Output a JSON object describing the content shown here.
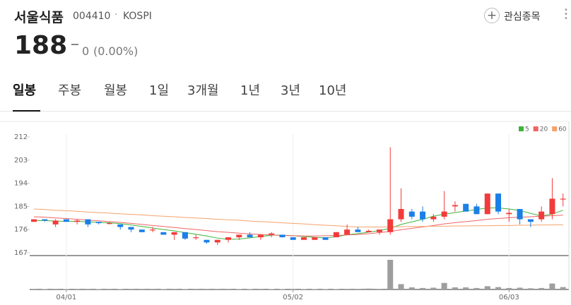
{
  "header": {
    "name": "서울식품",
    "code": "004410",
    "market": "KOSPI",
    "price": "188",
    "change": "0",
    "change_rate": "(0.00%)",
    "watch_button": "관심종목"
  },
  "tabs": [
    "일봉",
    "주봉",
    "월봉",
    "1일",
    "3개월",
    "1년",
    "3년",
    "10년"
  ],
  "chart_data": {
    "type": "candlestick",
    "categories": [
      null,
      null,
      null,
      "04/01",
      null,
      null,
      null,
      null,
      null,
      null,
      null,
      null,
      null,
      null,
      null,
      null,
      null,
      null,
      null,
      null,
      null,
      null,
      null,
      null,
      "05/02",
      null,
      null,
      null,
      null,
      null,
      null,
      null,
      null,
      null,
      null,
      null,
      null,
      null,
      null,
      null,
      null,
      null,
      null,
      null,
      "06/03",
      null,
      null,
      null,
      null,
      null
    ],
    "open": [
      179,
      180,
      178,
      180,
      179,
      180,
      179,
      178.5,
      178,
      177,
      176,
      176,
      175,
      174,
      175,
      173,
      172,
      171,
      172,
      173,
      174,
      173,
      174,
      174,
      173,
      172,
      172,
      173,
      173,
      174,
      176,
      175,
      175,
      175,
      180,
      183,
      183,
      180,
      181,
      185,
      186,
      185,
      182,
      190,
      182,
      184,
      180,
      180,
      182,
      188
    ],
    "high": [
      180,
      180,
      180,
      180,
      180,
      180,
      179,
      179,
      178,
      177,
      176,
      177,
      175,
      175,
      175,
      174,
      172,
      172,
      173,
      174,
      175,
      174,
      175,
      174,
      173,
      173,
      173,
      173,
      175,
      178,
      177,
      176,
      176,
      208,
      192,
      184,
      185,
      182,
      191,
      187,
      186,
      186,
      190,
      190,
      184,
      184,
      180,
      185,
      196,
      190
    ],
    "low": [
      179,
      179,
      177,
      179,
      178,
      177,
      178,
      178,
      176,
      175,
      175,
      175,
      174,
      172,
      172,
      172,
      170.5,
      170,
      171,
      172,
      173,
      172,
      173,
      173,
      172,
      172,
      172,
      172,
      173,
      174,
      175,
      175,
      174,
      174,
      179,
      180,
      179,
      179,
      180,
      183,
      183,
      182,
      182,
      182,
      179,
      178,
      177,
      179,
      180,
      185
    ],
    "close": [
      180,
      179.5,
      179.5,
      179,
      179.5,
      178,
      178.5,
      178.5,
      177,
      176,
      175,
      176,
      174,
      175,
      172.5,
      173,
      171,
      172,
      173,
      174,
      173,
      174,
      174.5,
      173,
      172,
      173,
      173,
      172,
      175,
      176,
      175,
      175.5,
      176,
      180,
      184,
      181,
      180,
      181,
      183,
      185.5,
      183,
      182,
      190,
      183,
      182.5,
      180,
      179,
      183,
      188,
      188
    ],
    "up_color": "#f23b3b",
    "down_color": "#1b7fe8",
    "volume": {
      "color": "#9e9e9e",
      "vlim": [
        0,
        100
      ],
      "values": [
        2,
        1,
        2,
        1,
        2,
        2,
        1,
        2,
        1,
        2,
        2,
        2,
        1,
        2,
        1,
        2,
        2,
        2,
        2,
        1,
        1,
        2,
        1,
        1,
        2,
        1,
        1,
        1,
        1,
        2,
        2,
        3,
        2,
        100,
        18,
        7,
        5,
        6,
        22,
        7,
        7,
        5,
        11,
        8,
        5,
        6,
        4,
        5,
        20,
        8
      ]
    },
    "series": [
      {
        "name": "5",
        "color": "#3cb43c",
        "values": [
          179.5,
          179.5,
          179.3,
          179.2,
          179.2,
          179,
          178.8,
          178.6,
          178.3,
          177.8,
          177.2,
          176.6,
          176,
          175.5,
          174.8,
          174.2,
          173.5,
          172.7,
          172.2,
          172.3,
          172.8,
          173.3,
          173.8,
          173.8,
          173.6,
          173.3,
          173,
          172.8,
          173.2,
          174,
          174.4,
          175,
          175.6,
          176.5,
          178,
          179,
          180,
          181.2,
          182,
          182.6,
          183.2,
          183.8,
          184.4,
          184.4,
          184,
          183.4,
          182.3,
          181.3,
          182,
          183.5
        ]
      },
      {
        "name": "20",
        "color": "#f06464",
        "values": [
          181,
          180.8,
          180.5,
          180.3,
          180,
          179.7,
          179.4,
          179.1,
          178.8,
          178.4,
          178,
          177.6,
          177.2,
          176.8,
          176.4,
          176,
          175.6,
          175.2,
          174.9,
          174.6,
          174.3,
          174.1,
          173.9,
          173.7,
          173.6,
          173.5,
          173.5,
          173.6,
          173.7,
          173.9,
          174.1,
          174.4,
          174.8,
          175.3,
          175.9,
          176.5,
          177,
          177.6,
          178.2,
          178.7,
          179.1,
          179.5,
          180,
          180.3,
          180.6,
          180.8,
          181,
          181.2,
          181.4,
          181.6
        ]
      },
      {
        "name": "60",
        "color": "#f4a36b",
        "values": [
          184,
          183.8,
          183.5,
          183.3,
          183.1,
          182.8,
          182.6,
          182.4,
          182.1,
          181.9,
          181.7,
          181.4,
          181.2,
          181,
          180.7,
          180.5,
          180.3,
          180,
          179.8,
          179.6,
          179.3,
          179.1,
          178.9,
          178.6,
          178.4,
          178.2,
          177.9,
          177.7,
          177.5,
          177.2,
          177,
          177,
          177,
          177.1,
          177.1,
          177.2,
          177.2,
          177.3,
          177.3,
          177.4,
          177.4,
          177.5,
          177.5,
          177.6,
          177.6,
          177.7,
          177.7,
          177.8,
          177.8,
          177.9
        ]
      }
    ],
    "ylim": [
      166,
      216
    ],
    "yticks": [
      167,
      176,
      185,
      194,
      203,
      212
    ]
  }
}
